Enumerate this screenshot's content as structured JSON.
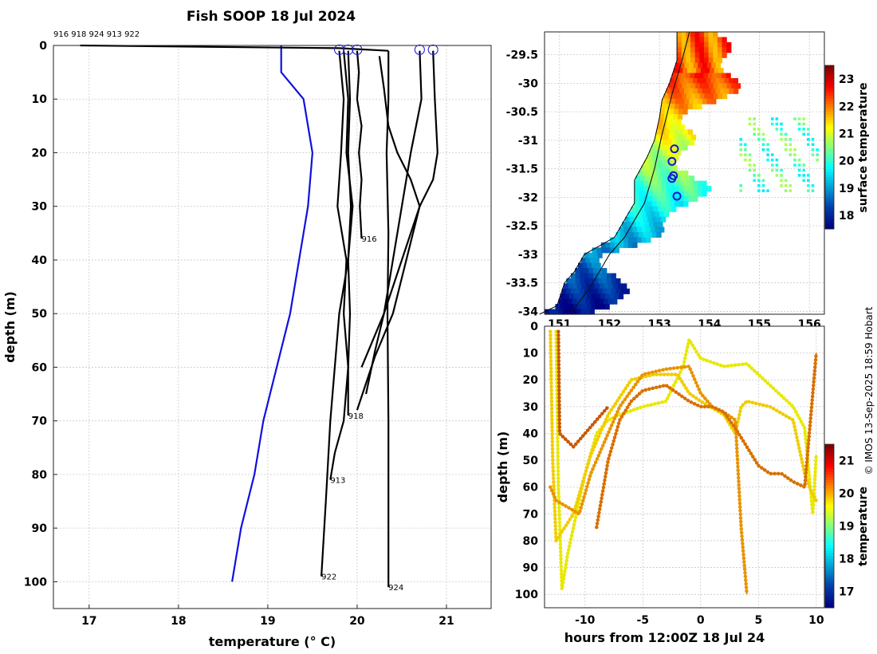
{
  "title": "Fish SOOP 18 Jul 2024",
  "credit": "© IMOS 13-Sep-2025 18:59 Hobart",
  "chart_data": [
    {
      "type": "line",
      "name": "temperature-profiles",
      "xlabel": "temperature (° C)",
      "ylabel": "depth (m)",
      "xlim": [
        16.6,
        21.5
      ],
      "ylim": [
        105,
        0
      ],
      "xticks": [
        "17",
        "18",
        "19",
        "20",
        "21"
      ],
      "yticks": [
        "0",
        "10",
        "20",
        "30",
        "40",
        "50",
        "60",
        "70",
        "80",
        "90",
        "100"
      ],
      "header_ids": "916 918 924 913 922",
      "profile_labels": [
        {
          "text": "916",
          "t": 20.05,
          "d": 36
        },
        {
          "text": "918",
          "t": 19.9,
          "d": 69
        },
        {
          "text": "913",
          "t": 19.7,
          "d": 81
        },
        {
          "text": "922",
          "t": 19.6,
          "d": 99
        },
        {
          "text": "924",
          "t": 20.35,
          "d": 101
        }
      ],
      "surface_markers": [
        19.8,
        19.9,
        20.0,
        20.7,
        20.85
      ],
      "series": [
        {
          "name": "climatology",
          "color": "#1010dd",
          "t": [
            19.15,
            19.15,
            19.4,
            19.5,
            19.45,
            19.35,
            19.25,
            19.1,
            18.95,
            18.85,
            18.7,
            18.6
          ],
          "d": [
            0,
            5,
            10,
            20,
            30,
            40,
            50,
            60,
            70,
            80,
            90,
            100
          ]
        },
        {
          "name": "surface-transit",
          "color": "#000000",
          "t": [
            16.9,
            19.8,
            20.35
          ],
          "d": [
            0,
            0.5,
            1
          ]
        },
        {
          "name": "profile-916",
          "color": "#000000",
          "t": [
            20.0,
            20.02,
            20.0,
            20.05,
            20.02,
            20.05,
            20.03,
            20.05
          ],
          "d": [
            1,
            5,
            10,
            15,
            20,
            25,
            30,
            36
          ]
        },
        {
          "name": "profile-918",
          "color": "#000000",
          "t": [
            19.9,
            19.92,
            19.9,
            19.93,
            19.9,
            19.92,
            19.9,
            19.9
          ],
          "d": [
            1,
            10,
            20,
            30,
            40,
            50,
            60,
            69
          ]
        },
        {
          "name": "profile-913",
          "color": "#000000",
          "t": [
            19.8,
            19.85,
            19.82,
            19.78,
            19.88,
            19.85,
            19.9,
            19.85,
            19.75,
            19.7
          ],
          "d": [
            1,
            10,
            20,
            30,
            40,
            50,
            60,
            70,
            76,
            81
          ]
        },
        {
          "name": "profile-922",
          "color": "#000000",
          "t": [
            19.85,
            19.9,
            19.88,
            19.95,
            19.9,
            19.8,
            19.75,
            19.7,
            19.65,
            19.6
          ],
          "d": [
            1,
            10,
            20,
            30,
            40,
            50,
            60,
            70,
            85,
            99
          ]
        },
        {
          "name": "profile-924",
          "color": "#000000",
          "t": [
            20.35,
            20.35,
            20.33,
            20.35,
            20.34,
            20.35,
            20.35,
            20.35
          ],
          "d": [
            1,
            10,
            20,
            35,
            50,
            70,
            90,
            101
          ]
        },
        {
          "name": "profile-a",
          "color": "#000000",
          "t": [
            20.7,
            20.72,
            20.6,
            20.55,
            20.5,
            20.4,
            20.3,
            20.2,
            20.1
          ],
          "d": [
            1,
            10,
            20,
            25,
            30,
            40,
            50,
            57,
            65
          ]
        },
        {
          "name": "profile-b",
          "color": "#000000",
          "t": [
            20.85,
            20.87,
            20.9,
            20.85,
            20.7,
            20.55,
            20.4,
            20.2,
            20.0
          ],
          "d": [
            1,
            10,
            20,
            25,
            30,
            40,
            50,
            58,
            68
          ]
        },
        {
          "name": "profile-c",
          "color": "#000000",
          "t": [
            20.25,
            20.3,
            20.35,
            20.45,
            20.6,
            20.7,
            20.5,
            20.3,
            20.05
          ],
          "d": [
            2,
            8,
            15,
            20,
            25,
            30,
            40,
            50,
            60
          ]
        }
      ]
    },
    {
      "type": "heatmap",
      "name": "surface-temperature-map",
      "xlim": [
        150.7,
        156.3
      ],
      "ylim": [
        -34.05,
        -29.1
      ],
      "xticks": [
        "151",
        "152",
        "153",
        "154",
        "155",
        "156"
      ],
      "yticks": [
        "-29.5",
        "-30",
        "-30.5",
        "-31",
        "-31.5",
        "-32",
        "-32.5",
        "-33",
        "-33.5",
        "-34"
      ],
      "colorbar_label": "surface temperature",
      "colorbar_range": [
        17.5,
        23.5
      ],
      "colorbar_ticks": [
        "18",
        "19",
        "20",
        "21",
        "22",
        "23"
      ],
      "coastline": [
        [
          150.6,
          -34.05
        ],
        [
          150.95,
          -33.9
        ],
        [
          151.1,
          -33.5
        ],
        [
          151.3,
          -33.3
        ],
        [
          151.5,
          -33.0
        ],
        [
          151.7,
          -32.9
        ],
        [
          152.1,
          -32.7
        ],
        [
          152.3,
          -32.4
        ],
        [
          152.5,
          -32.1
        ],
        [
          152.5,
          -31.7
        ],
        [
          152.75,
          -31.3
        ],
        [
          152.9,
          -31.0
        ],
        [
          153.0,
          -30.6
        ],
        [
          153.05,
          -30.3
        ],
        [
          153.2,
          -30.0
        ],
        [
          153.35,
          -29.6
        ],
        [
          153.35,
          -29.1
        ]
      ],
      "track": [
        [
          151.2,
          -34.05
        ],
        [
          151.6,
          -33.6
        ],
        [
          152.0,
          -33.0
        ],
        [
          152.3,
          -32.7
        ],
        [
          152.7,
          -32.1
        ],
        [
          152.9,
          -31.5
        ],
        [
          153.05,
          -30.9
        ],
        [
          153.25,
          -30.2
        ],
        [
          153.45,
          -29.6
        ],
        [
          153.6,
          -29.1
        ]
      ],
      "stations": [
        [
          153.3,
          -31.15
        ],
        [
          153.25,
          -31.37
        ],
        [
          153.28,
          -31.62
        ],
        [
          153.25,
          -31.67
        ],
        [
          153.35,
          -31.98
        ]
      ]
    },
    {
      "type": "scatter",
      "name": "temperature-time-depth",
      "xlabel": "hours from 12:00Z 18 Jul 24",
      "ylabel": "depth (m)",
      "xlim": [
        -13.5,
        10.7
      ],
      "ylim": [
        105,
        0
      ],
      "xticks": [
        "-10",
        "-5",
        "0",
        "5",
        "10"
      ],
      "yticks": [
        "0",
        "10",
        "20",
        "30",
        "40",
        "50",
        "60",
        "70",
        "80",
        "90",
        "100"
      ],
      "colorbar_label": "temperature",
      "colorbar_range": [
        16.5,
        21.5
      ],
      "colorbar_ticks": [
        "17",
        "18",
        "19",
        "20",
        "21"
      ],
      "series": [
        {
          "name": "trace-1",
          "color": "#e8e800",
          "x": [
            -12.5,
            -12.3,
            -12.0,
            -11.5,
            -11.0,
            -10.0,
            -9.0,
            -8.0,
            -7.0,
            -5.0,
            -3.0,
            -1.5,
            -1.0,
            0.0,
            2.0,
            4.0,
            6.0,
            8.0,
            9.0,
            9.7,
            10.0
          ],
          "d": [
            2,
            60,
            98,
            85,
            75,
            55,
            40,
            35,
            33,
            30,
            28,
            15,
            5,
            12,
            15,
            14,
            22,
            30,
            38,
            70,
            48
          ]
        },
        {
          "name": "trace-2",
          "color": "#f0cc00",
          "x": [
            -13.0,
            -12.8,
            -12.5,
            -11.0,
            -9.5,
            -8.0,
            -6.0,
            -4.0,
            -2.0,
            -1.0,
            0.0,
            2.0,
            3.0,
            3.5,
            4.0,
            6.0,
            8.0,
            9.0,
            9.6,
            10.0
          ],
          "d": [
            2,
            50,
            80,
            70,
            48,
            33,
            20,
            18,
            18,
            25,
            28,
            33,
            40,
            30,
            28,
            30,
            35,
            55,
            62,
            65
          ]
        },
        {
          "name": "trace-3",
          "color": "#e89400",
          "x": [
            -13.0,
            -12.5,
            -10.5,
            -9.5,
            -8.5,
            -7.0,
            -5.0,
            -3.0,
            -1.0,
            0.0,
            1.0,
            2.0,
            3.0,
            3.5,
            4.0
          ],
          "d": [
            60,
            65,
            70,
            55,
            45,
            30,
            18,
            16,
            15,
            25,
            30,
            32,
            35,
            75,
            100
          ]
        },
        {
          "name": "trace-4",
          "color": "#d87000",
          "x": [
            -9.0,
            -8.0,
            -7.0,
            -6.0,
            -5.0,
            -4.0,
            -3.0,
            -2.0,
            -1.0,
            0.0,
            1.0,
            2.0,
            3.0,
            4.0,
            5.0,
            6.0,
            7.0,
            8.0,
            9.0,
            10.0
          ],
          "d": [
            75,
            50,
            35,
            28,
            24,
            23,
            22,
            25,
            28,
            30,
            30,
            32,
            38,
            45,
            52,
            55,
            55,
            58,
            60,
            10
          ]
        },
        {
          "name": "trace-5",
          "color": "#c85800",
          "x": [
            -12.3,
            -12.2,
            -11.0,
            -10.0,
            -9.0,
            -8.0
          ],
          "d": [
            2,
            40,
            45,
            40,
            35,
            30
          ]
        }
      ]
    }
  ]
}
